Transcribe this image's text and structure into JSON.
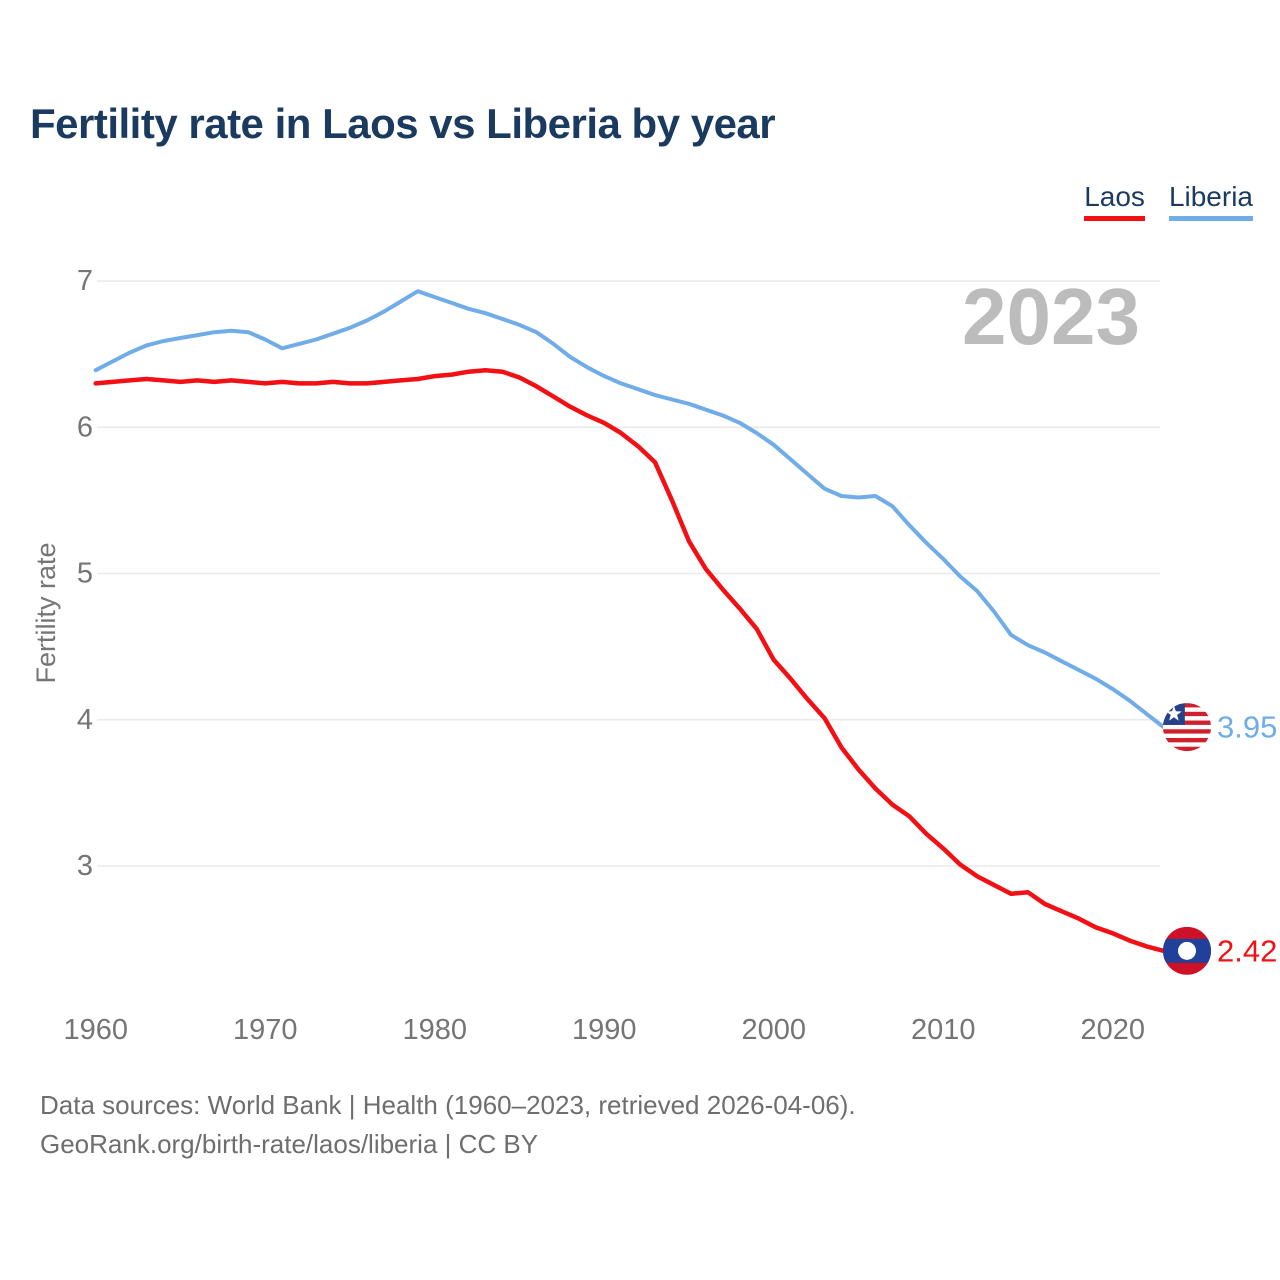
{
  "page": {
    "title": "Fertility rate in Laos vs Liberia by year"
  },
  "watermark": "2023",
  "footer": {
    "line1": "Data sources: World Bank | Health (1960–2023, retrieved 2026-04-06).",
    "line2": "GeoRank.org/birth-rate/laos/liberia | CC BY"
  },
  "colors": {
    "title_navy": "#1a3a5f",
    "axis_gray": "#757575",
    "watermark_gray": "#bcbcbc",
    "gridline_gray": "#eaeaea",
    "footer_gray": "#6e6e6e"
  },
  "chart_data": {
    "type": "line",
    "title": "Fertility rate in Laos vs Liberia by year",
    "xlabel": "",
    "ylabel": "Fertility rate",
    "grid": "horizontal",
    "legend_position": "top-right",
    "xlim": [
      1960,
      2023
    ],
    "ylim": [
      2.3,
      7
    ],
    "xticks": [
      1960,
      1970,
      1980,
      1990,
      2000,
      2010,
      2020
    ],
    "yticks": [
      3,
      4,
      5,
      6,
      7
    ],
    "x": [
      1960,
      1961,
      1962,
      1963,
      1964,
      1965,
      1966,
      1967,
      1968,
      1969,
      1970,
      1971,
      1972,
      1973,
      1974,
      1975,
      1976,
      1977,
      1978,
      1979,
      1980,
      1981,
      1982,
      1983,
      1984,
      1985,
      1986,
      1987,
      1988,
      1989,
      1990,
      1991,
      1992,
      1993,
      1994,
      1995,
      1996,
      1997,
      1998,
      1999,
      2000,
      2001,
      2002,
      2003,
      2004,
      2005,
      2006,
      2007,
      2008,
      2009,
      2010,
      2011,
      2012,
      2013,
      2014,
      2015,
      2016,
      2017,
      2018,
      2019,
      2020,
      2021,
      2022,
      2023
    ],
    "series": [
      {
        "name": "Laos",
        "color": "#f21014",
        "flag": "laos-flag-icon",
        "end_label": "2.42",
        "values": [
          6.3,
          6.31,
          6.32,
          6.33,
          6.32,
          6.31,
          6.32,
          6.31,
          6.32,
          6.31,
          6.3,
          6.31,
          6.3,
          6.3,
          6.31,
          6.3,
          6.3,
          6.31,
          6.32,
          6.33,
          6.35,
          6.36,
          6.38,
          6.39,
          6.38,
          6.34,
          6.28,
          6.21,
          6.14,
          6.08,
          6.03,
          5.96,
          5.87,
          5.76,
          5.5,
          5.22,
          5.03,
          4.89,
          4.76,
          4.62,
          4.41,
          4.28,
          4.14,
          4.01,
          3.81,
          3.66,
          3.53,
          3.42,
          3.34,
          3.22,
          3.12,
          3.01,
          2.93,
          2.87,
          2.81,
          2.82,
          2.74,
          2.69,
          2.64,
          2.58,
          2.54,
          2.49,
          2.45,
          2.42
        ]
      },
      {
        "name": "Liberia",
        "color": "#70ade8",
        "flag": "liberia-flag-icon",
        "end_label": "3.95",
        "values": [
          6.39,
          6.45,
          6.51,
          6.56,
          6.59,
          6.61,
          6.63,
          6.65,
          6.66,
          6.65,
          6.6,
          6.54,
          6.57,
          6.6,
          6.64,
          6.68,
          6.73,
          6.79,
          6.86,
          6.93,
          6.89,
          6.85,
          6.81,
          6.78,
          6.74,
          6.7,
          6.65,
          6.57,
          6.48,
          6.41,
          6.35,
          6.3,
          6.26,
          6.22,
          6.19,
          6.16,
          6.12,
          6.08,
          6.03,
          5.96,
          5.88,
          5.78,
          5.68,
          5.58,
          5.53,
          5.52,
          5.53,
          5.46,
          5.33,
          5.21,
          5.1,
          4.98,
          4.88,
          4.74,
          4.58,
          4.51,
          4.46,
          4.4,
          4.34,
          4.28,
          4.21,
          4.13,
          4.04,
          3.95
        ]
      }
    ]
  }
}
